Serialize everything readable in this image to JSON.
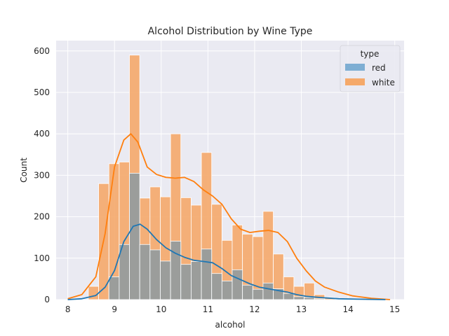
{
  "chart_data": {
    "type": "bar",
    "title": "Alcohol Distribution by Wine Type",
    "xlabel": "alcohol",
    "ylabel": "Count",
    "xlim": [
      7.75,
      15.2
    ],
    "ylim": [
      0,
      625
    ],
    "xticks": [
      8,
      9,
      10,
      11,
      12,
      13,
      14,
      15
    ],
    "yticks": [
      0,
      100,
      200,
      300,
      400,
      500,
      600
    ],
    "grid": true,
    "legend": {
      "title": "type",
      "placement": "top-right"
    },
    "bin_edges": [
      8.0,
      8.24,
      8.44,
      8.66,
      8.88,
      9.1,
      9.32,
      9.54,
      9.76,
      9.98,
      10.2,
      10.42,
      10.64,
      10.86,
      11.08,
      11.3,
      11.52,
      11.74,
      11.96,
      12.18,
      12.4,
      12.62,
      12.84,
      13.06,
      13.28,
      13.5,
      13.72,
      13.94,
      14.16,
      14.38,
      14.6,
      14.82
    ],
    "series": [
      {
        "name": "white",
        "color": "#f5a96a",
        "kde_color": "#ff7f0e",
        "values": [
          0,
          0,
          32,
          280,
          328,
          332,
          590,
          245,
          272,
          248,
          400,
          246,
          228,
          355,
          230,
          143,
          180,
          158,
          152,
          213,
          110,
          55,
          32,
          40,
          12,
          5,
          0,
          0,
          0,
          0,
          0
        ],
        "kde": [
          [
            8.0,
            2
          ],
          [
            8.3,
            12
          ],
          [
            8.6,
            55
          ],
          [
            8.8,
            160
          ],
          [
            9.0,
            320
          ],
          [
            9.2,
            385
          ],
          [
            9.35,
            400
          ],
          [
            9.5,
            380
          ],
          [
            9.7,
            320
          ],
          [
            9.9,
            302
          ],
          [
            10.1,
            295
          ],
          [
            10.3,
            293
          ],
          [
            10.5,
            295
          ],
          [
            10.7,
            285
          ],
          [
            10.9,
            265
          ],
          [
            11.1,
            250
          ],
          [
            11.3,
            230
          ],
          [
            11.5,
            195
          ],
          [
            11.7,
            170
          ],
          [
            11.9,
            162
          ],
          [
            12.1,
            165
          ],
          [
            12.3,
            167
          ],
          [
            12.5,
            162
          ],
          [
            12.7,
            140
          ],
          [
            12.9,
            100
          ],
          [
            13.1,
            70
          ],
          [
            13.3,
            45
          ],
          [
            13.5,
            30
          ],
          [
            13.8,
            18
          ],
          [
            14.1,
            9
          ],
          [
            14.5,
            3
          ],
          [
            14.9,
            0
          ]
        ]
      },
      {
        "name": "red",
        "color": "#7eaed3",
        "kde_color": "#1f77b4",
        "values": [
          0,
          0,
          0,
          0,
          55,
          133,
          305,
          133,
          120,
          93,
          141,
          85,
          92,
          122,
          63,
          45,
          72,
          35,
          25,
          40,
          26,
          15,
          7,
          5,
          2,
          0,
          0,
          0,
          0,
          0,
          0
        ],
        "kde": [
          [
            8.0,
            0
          ],
          [
            8.3,
            2
          ],
          [
            8.6,
            10
          ],
          [
            8.8,
            30
          ],
          [
            9.0,
            70
          ],
          [
            9.2,
            140
          ],
          [
            9.4,
            177
          ],
          [
            9.55,
            182
          ],
          [
            9.7,
            170
          ],
          [
            9.9,
            145
          ],
          [
            10.1,
            125
          ],
          [
            10.3,
            112
          ],
          [
            10.5,
            102
          ],
          [
            10.7,
            95
          ],
          [
            10.9,
            92
          ],
          [
            11.1,
            89
          ],
          [
            11.3,
            75
          ],
          [
            11.5,
            58
          ],
          [
            11.7,
            48
          ],
          [
            11.9,
            38
          ],
          [
            12.1,
            30
          ],
          [
            12.3,
            26
          ],
          [
            12.5,
            22
          ],
          [
            12.7,
            18
          ],
          [
            12.9,
            12
          ],
          [
            13.1,
            8
          ],
          [
            13.4,
            5
          ],
          [
            13.8,
            2
          ],
          [
            14.2,
            1
          ],
          [
            14.8,
            0
          ]
        ]
      }
    ]
  }
}
